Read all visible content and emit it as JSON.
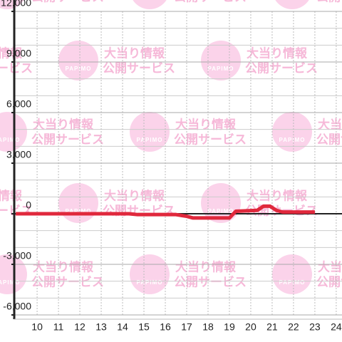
{
  "chart_data": {
    "type": "line",
    "watermark": {
      "logo": "PAPIMO",
      "line1": "大当り情報",
      "line2": "公開サービス"
    },
    "x": [
      9,
      14.3,
      14.7,
      16.5,
      17,
      17.3,
      19,
      19.3,
      20.3,
      20.6,
      20.9,
      21.2,
      21.5,
      23
    ],
    "series": [
      {
        "color": "#e0283c",
        "values": [
          0,
          0,
          -50,
          -50,
          -150,
          -250,
          -250,
          150,
          200,
          450,
          450,
          200,
          100,
          100
        ]
      }
    ],
    "xlim": [
      8.93,
      24.27
    ],
    "xticks": [
      10,
      11,
      12,
      13,
      14,
      15,
      16,
      17,
      18,
      19,
      20,
      21,
      22,
      23,
      24
    ],
    "ylim": [
      -6000,
      12000
    ],
    "yticks": [
      {
        "value": -6000,
        "label": "-6,000"
      },
      {
        "value": -3000,
        "label": "-3,000"
      },
      0,
      {
        "value": 3000,
        "label": "3,000"
      },
      {
        "value": 6000,
        "label": "6,000"
      },
      {
        "value": 9000,
        "label": "9,000"
      },
      {
        "value": 12000,
        "label": "12,000"
      }
    ],
    "yminorticks": [
      -5000,
      -4000,
      -2000,
      -1000,
      1000,
      2000,
      4000,
      5000,
      7000,
      8000,
      10000,
      11000
    ],
    "grid": true
  }
}
